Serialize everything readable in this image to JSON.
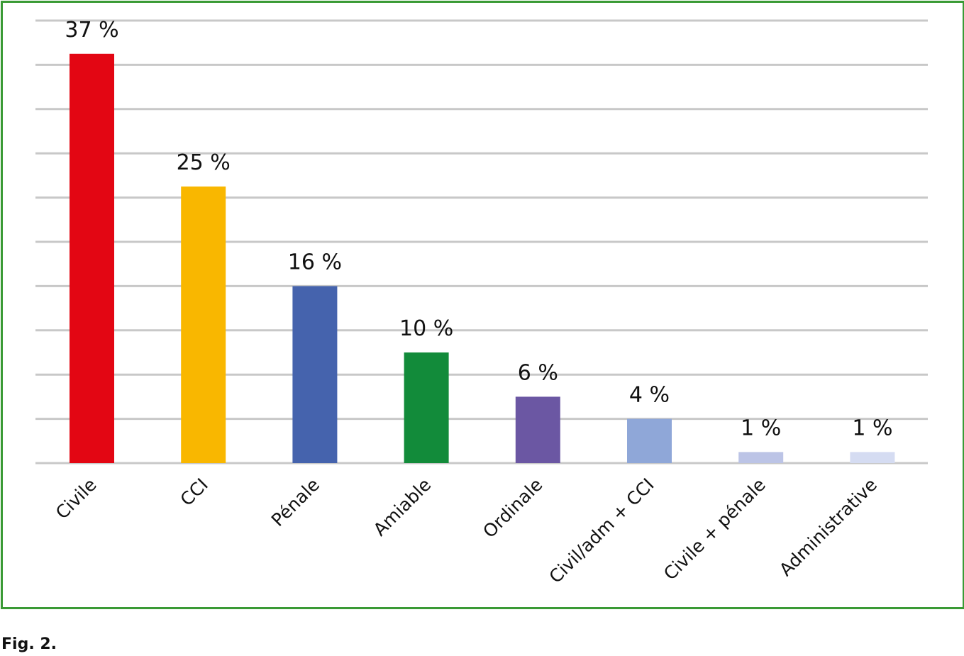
{
  "caption": "Fig. 2.",
  "frame_color": "#3a9a35",
  "gridline_color": "#c8c8c8",
  "chart_data": {
    "type": "bar",
    "categories": [
      "Civile",
      "CCI",
      "Pénale",
      "Amiable",
      "Ordinale",
      "Civil/adm + CCI",
      "Civile + pénale",
      "Administrative"
    ],
    "values": [
      37,
      25,
      16,
      10,
      6,
      4,
      1,
      1
    ],
    "value_labels": [
      "37 %",
      "25 %",
      "16 %",
      "10 %",
      "6 %",
      "4 %",
      "1 %",
      "1 %"
    ],
    "colors": [
      "#e30613",
      "#f9b700",
      "#4563ad",
      "#128b3a",
      "#6b57a3",
      "#8fa7d8",
      "#bcc4e6",
      "#d5dcf2"
    ],
    "ylim": [
      0,
      40
    ],
    "ytick_step": 4,
    "grid": true,
    "legend": "none",
    "title": "",
    "xlabel": "",
    "ylabel": ""
  }
}
